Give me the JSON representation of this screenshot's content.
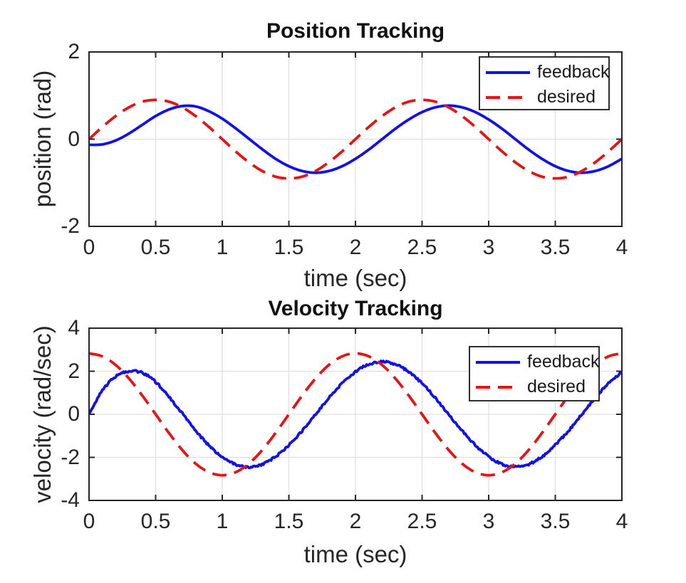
{
  "figure": {
    "background": "#ffffff",
    "axis_color": "#262626",
    "grid_color": "#e0e0e0",
    "text_color": "#262626",
    "title_color": "#111111"
  },
  "chart_data": [
    {
      "type": "line",
      "title": "Position Tracking",
      "xlabel": "time (sec)",
      "ylabel": "position (rad)",
      "xlim": [
        0,
        4
      ],
      "ylim": [
        -2,
        2
      ],
      "xticks": [
        0,
        0.5,
        1,
        1.5,
        2,
        2.5,
        3,
        3.5,
        4
      ],
      "xtick_labels": [
        "0",
        "0.5",
        "1",
        "1.5",
        "2",
        "2.5",
        "3",
        "3.5",
        "4"
      ],
      "yticks": [
        -2,
        0,
        2
      ],
      "ytick_labels": [
        "-2",
        "0",
        "2"
      ],
      "grid": true,
      "legend": {
        "location": "northeast",
        "entries": [
          "feedback",
          "desired"
        ]
      },
      "x": [
        0,
        0.1,
        0.2,
        0.3,
        0.4,
        0.5,
        0.6,
        0.7,
        0.8,
        0.9,
        1.0,
        1.1,
        1.2,
        1.3,
        1.4,
        1.5,
        1.6,
        1.7,
        1.8,
        1.9,
        2.0,
        2.1,
        2.2,
        2.3,
        2.4,
        2.5,
        2.6,
        2.7,
        2.8,
        2.9,
        3.0,
        3.1,
        3.2,
        3.3,
        3.4,
        3.5,
        3.6,
        3.7,
        3.8,
        3.9,
        4.0
      ],
      "series": [
        {
          "name": "feedback",
          "color": "#1111e8",
          "line_style": "solid",
          "line_width": 3.8,
          "noise_amplitude": 0,
          "values": [
            -0.13,
            -0.12,
            -0.03,
            0.13,
            0.33,
            0.53,
            0.68,
            0.76,
            0.75,
            0.64,
            0.47,
            0.25,
            0.01,
            -0.23,
            -0.45,
            -0.62,
            -0.73,
            -0.77,
            -0.73,
            -0.62,
            -0.45,
            -0.24,
            0,
            0.24,
            0.45,
            0.62,
            0.73,
            0.77,
            0.73,
            0.62,
            0.45,
            0.24,
            0,
            -0.24,
            -0.45,
            -0.62,
            -0.73,
            -0.77,
            -0.73,
            -0.62,
            -0.45
          ]
        },
        {
          "name": "desired",
          "color": "#e81313",
          "line_style": "dashed",
          "line_width": 3.8,
          "noise_amplitude": 0,
          "values": [
            0,
            0.28,
            0.53,
            0.73,
            0.86,
            0.9,
            0.86,
            0.73,
            0.53,
            0.28,
            0,
            -0.28,
            -0.53,
            -0.73,
            -0.86,
            -0.9,
            -0.86,
            -0.73,
            -0.53,
            -0.28,
            0,
            0.28,
            0.53,
            0.73,
            0.86,
            0.9,
            0.86,
            0.73,
            0.53,
            0.28,
            0,
            -0.28,
            -0.53,
            -0.73,
            -0.86,
            -0.9,
            -0.86,
            -0.73,
            -0.53,
            -0.28,
            0
          ]
        }
      ]
    },
    {
      "type": "line",
      "title": "Velocity Tracking",
      "xlabel": "time (sec)",
      "ylabel": "velocity (rad/sec)",
      "xlim": [
        0,
        4
      ],
      "ylim": [
        -4,
        4
      ],
      "xticks": [
        0,
        0.5,
        1,
        1.5,
        2,
        2.5,
        3,
        3.5,
        4
      ],
      "xtick_labels": [
        "0",
        "0.5",
        "1",
        "1.5",
        "2",
        "2.5",
        "3",
        "3.5",
        "4"
      ],
      "yticks": [
        -4,
        -2,
        0,
        2,
        4
      ],
      "ytick_labels": [
        "-4",
        "-2",
        "0",
        "2",
        "4"
      ],
      "grid": true,
      "legend": {
        "location": "northeast",
        "entries": [
          "feedback",
          "desired"
        ]
      },
      "x": [
        0,
        0.1,
        0.2,
        0.3,
        0.4,
        0.5,
        0.6,
        0.7,
        0.8,
        0.9,
        1.0,
        1.1,
        1.2,
        1.3,
        1.4,
        1.5,
        1.6,
        1.7,
        1.8,
        1.9,
        2.0,
        2.1,
        2.2,
        2.3,
        2.4,
        2.5,
        2.6,
        2.7,
        2.8,
        2.9,
        3.0,
        3.1,
        3.2,
        3.3,
        3.4,
        3.5,
        3.6,
        3.7,
        3.8,
        3.9,
        4.0
      ],
      "series": [
        {
          "name": "feedback",
          "color": "#1111e8",
          "line_style": "solid",
          "line_width": 3.8,
          "noise_amplitude": 0.05,
          "values": [
            0,
            1.1,
            1.75,
            2.0,
            1.93,
            1.5,
            0.8,
            0.05,
            -0.75,
            -1.45,
            -2.0,
            -2.33,
            -2.45,
            -2.32,
            -1.97,
            -1.43,
            -0.76,
            0,
            0.76,
            1.43,
            1.97,
            2.32,
            2.44,
            2.32,
            1.97,
            1.43,
            0.76,
            0,
            -0.76,
            -1.43,
            -1.97,
            -2.32,
            -2.44,
            -2.32,
            -1.97,
            -1.43,
            -0.76,
            0,
            0.76,
            1.43,
            1.97
          ]
        },
        {
          "name": "desired",
          "color": "#e81313",
          "line_style": "dashed",
          "line_width": 3.8,
          "noise_amplitude": 0,
          "values": [
            2.83,
            2.69,
            2.29,
            1.66,
            0.87,
            0,
            -0.87,
            -1.66,
            -2.29,
            -2.69,
            -2.83,
            -2.69,
            -2.29,
            -1.66,
            -0.87,
            0,
            0.87,
            1.66,
            2.29,
            2.69,
            2.83,
            2.69,
            2.29,
            1.66,
            0.87,
            0,
            -0.87,
            -1.66,
            -2.29,
            -2.69,
            -2.83,
            -2.69,
            -2.29,
            -1.66,
            -0.87,
            0,
            0.87,
            1.66,
            2.29,
            2.69,
            2.83
          ]
        }
      ]
    }
  ]
}
